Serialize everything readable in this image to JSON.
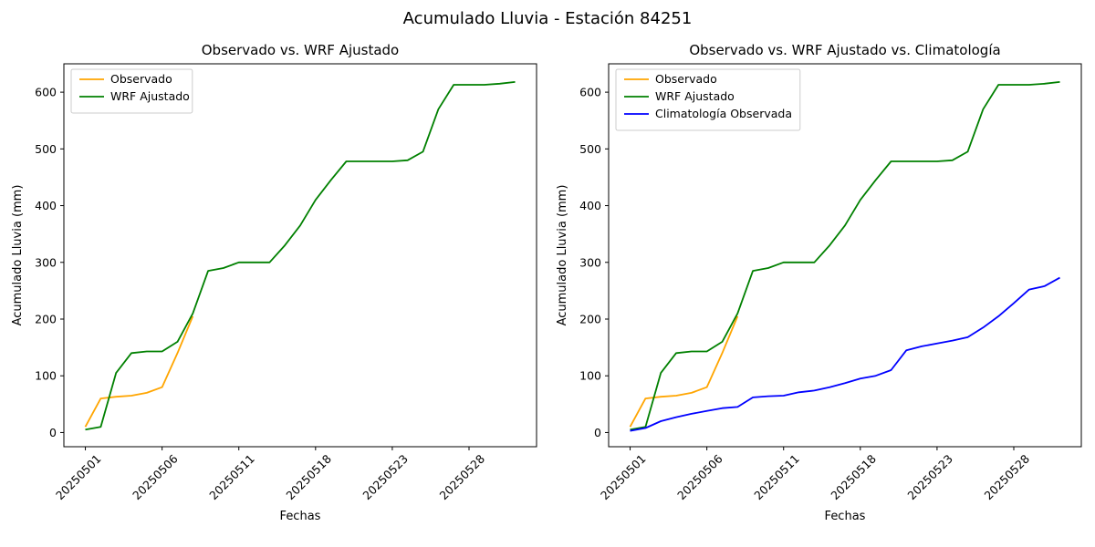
{
  "figure_title": "Acumulado Lluvia - Estación 84251",
  "colors": {
    "observado": "#FFA500",
    "wrf_ajustado": "#008000",
    "climatologia": "#0000FF",
    "legend_border": "#cccccc",
    "axis": "#000000"
  },
  "chart_data": [
    {
      "type": "line",
      "title": "Observado vs. WRF Ajustado",
      "xlabel": "Fechas",
      "ylabel": "Acumulado Lluvia (mm)",
      "xlim": [
        -1.4,
        29.4
      ],
      "ylim": [
        -25,
        650
      ],
      "yticks": [
        0,
        100,
        200,
        300,
        400,
        500,
        600
      ],
      "xticks": [
        {
          "pos": 0,
          "label": "20250501"
        },
        {
          "pos": 5,
          "label": "20250506"
        },
        {
          "pos": 10,
          "label": "20250511"
        },
        {
          "pos": 15,
          "label": "20250518"
        },
        {
          "pos": 20,
          "label": "20250523"
        },
        {
          "pos": 25,
          "label": "20250528"
        }
      ],
      "grid": false,
      "legend_position": "upper-left",
      "series": [
        {
          "name": "Observado",
          "color": "#FFA500",
          "x": [
            0,
            1,
            2,
            3,
            4,
            5,
            6,
            7
          ],
          "values": [
            10,
            60,
            63,
            65,
            70,
            80,
            140,
            205
          ]
        },
        {
          "name": "WRF Ajustado",
          "color": "#008000",
          "x": [
            0,
            1,
            2,
            3,
            4,
            5,
            6,
            7,
            8,
            9,
            10,
            11,
            12,
            13,
            14,
            15,
            16,
            17,
            18,
            19,
            20,
            21,
            22,
            23,
            24,
            25,
            26,
            27,
            28
          ],
          "values": [
            5,
            10,
            105,
            140,
            143,
            143,
            160,
            210,
            285,
            290,
            300,
            300,
            300,
            330,
            365,
            410,
            445,
            478,
            478,
            478,
            478,
            480,
            495,
            570,
            613,
            613,
            613,
            615,
            618
          ]
        }
      ]
    },
    {
      "type": "line",
      "title": "Observado vs. WRF Ajustado vs. Climatología",
      "xlabel": "Fechas",
      "ylabel": "Acumulado Lluvia (mm)",
      "xlim": [
        -1.4,
        29.4
      ],
      "ylim": [
        -25,
        650
      ],
      "yticks": [
        0,
        100,
        200,
        300,
        400,
        500,
        600
      ],
      "xticks": [
        {
          "pos": 0,
          "label": "20250501"
        },
        {
          "pos": 5,
          "label": "20250506"
        },
        {
          "pos": 10,
          "label": "20250511"
        },
        {
          "pos": 15,
          "label": "20250518"
        },
        {
          "pos": 20,
          "label": "20250523"
        },
        {
          "pos": 25,
          "label": "20250528"
        }
      ],
      "grid": false,
      "legend_position": "upper-left",
      "series": [
        {
          "name": "Observado",
          "color": "#FFA500",
          "x": [
            0,
            1,
            2,
            3,
            4,
            5,
            6,
            7
          ],
          "values": [
            10,
            60,
            63,
            65,
            70,
            80,
            140,
            205
          ]
        },
        {
          "name": "WRF Ajustado",
          "color": "#008000",
          "x": [
            0,
            1,
            2,
            3,
            4,
            5,
            6,
            7,
            8,
            9,
            10,
            11,
            12,
            13,
            14,
            15,
            16,
            17,
            18,
            19,
            20,
            21,
            22,
            23,
            24,
            25,
            26,
            27,
            28
          ],
          "values": [
            5,
            10,
            105,
            140,
            143,
            143,
            160,
            210,
            285,
            290,
            300,
            300,
            300,
            330,
            365,
            410,
            445,
            478,
            478,
            478,
            478,
            480,
            495,
            570,
            613,
            613,
            613,
            615,
            618
          ]
        },
        {
          "name": "Climatología Observada",
          "color": "#0000FF",
          "x": [
            0,
            1,
            2,
            3,
            4,
            5,
            6,
            7,
            8,
            9,
            10,
            11,
            12,
            13,
            14,
            15,
            16,
            17,
            18,
            19,
            20,
            21,
            22,
            23,
            24,
            25,
            26,
            27,
            28
          ],
          "values": [
            3,
            8,
            20,
            27,
            33,
            38,
            43,
            45,
            62,
            64,
            65,
            71,
            74,
            80,
            87,
            95,
            100,
            110,
            145,
            152,
            157,
            162,
            168,
            185,
            205,
            228,
            252,
            258,
            273
          ]
        }
      ]
    }
  ]
}
